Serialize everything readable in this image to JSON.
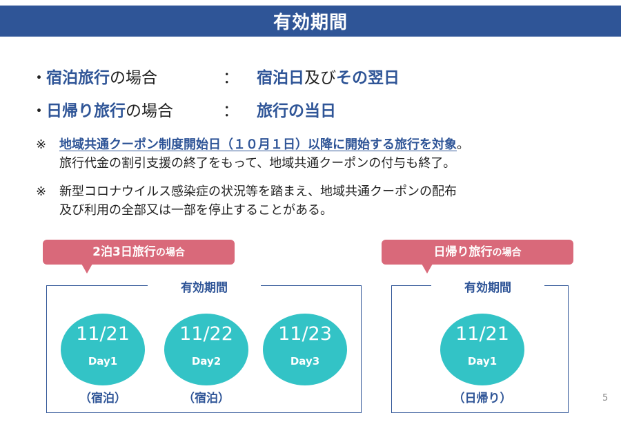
{
  "title": "有効期間",
  "bullets": [
    {
      "bullet": "・",
      "label_highlight": "宿泊旅行",
      "label_rest": "の場合",
      "colon": "：",
      "value_parts": [
        {
          "text": "宿泊日",
          "bold": true
        },
        {
          "text": "及び",
          "bold": false
        },
        {
          "text": "その翌日",
          "bold": true
        }
      ]
    },
    {
      "bullet": "・",
      "label_highlight": "日帰り旅行",
      "label_rest": "の場合",
      "colon": "：",
      "value_parts": [
        {
          "text": "旅行の当日",
          "bold": true
        }
      ]
    }
  ],
  "notes": [
    {
      "mark": "※",
      "line1_highlight": "地域共通クーポン制度開始日（１０月１日）以降に開始する旅行を対象",
      "line1_rest": "。",
      "line2": "旅行代金の割引支援の終了をもって、地域共通クーポンの付与も終了。"
    },
    {
      "mark": "※",
      "line1": "新型コロナウイルス感染症の状況等を踏まえ、地域共通クーポンの配布",
      "line2": "及び利用の全部又は一部を停止することがある。"
    }
  ],
  "example_overnight": {
    "callout_main": "2泊3日旅行",
    "callout_suffix": "の場合",
    "box_label": "有効期間",
    "days": [
      {
        "date": "11/21",
        "day": "Day1",
        "caption": "（宿泊）"
      },
      {
        "date": "11/22",
        "day": "Day2",
        "caption": "（宿泊）"
      },
      {
        "date": "11/23",
        "day": "Day3",
        "caption": ""
      }
    ]
  },
  "example_daytrip": {
    "callout_main": "日帰り旅行",
    "callout_suffix": "の場合",
    "box_label": "有効期間",
    "days": [
      {
        "date": "11/21",
        "day": "Day1",
        "caption": "（日帰り）"
      }
    ]
  },
  "page_number": "5",
  "colors": {
    "title_bar": "#2f5597",
    "accent_blue": "#2f5597",
    "callout_pink": "#d9697a",
    "circle_teal": "#33c3c6"
  }
}
